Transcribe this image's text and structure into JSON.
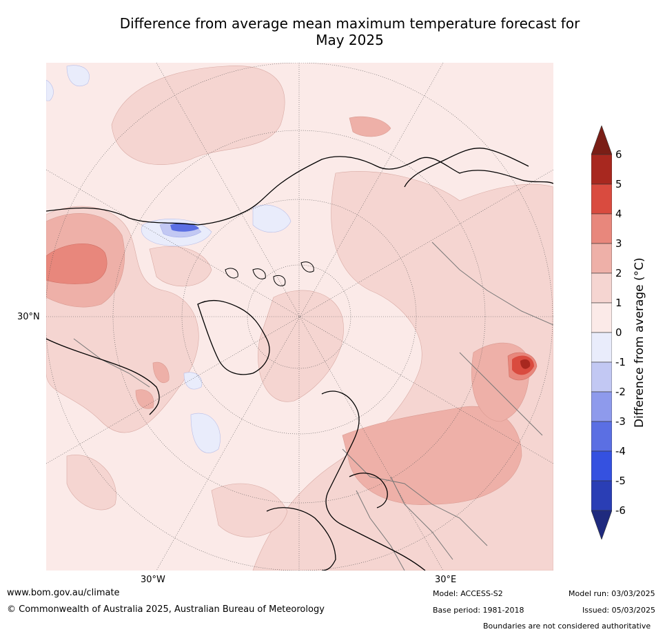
{
  "title_line1": "Difference from average mean maximum temperature forecast for",
  "title_line2": "May 2025",
  "axis_labels": {
    "lat_30N": "30°N",
    "lon_30W": "30°W",
    "lon_30E": "30°E"
  },
  "colorbar": {
    "label": "Difference from average (°C)",
    "ticks": [
      "6",
      "5",
      "4",
      "3",
      "2",
      "1",
      "0",
      "-1",
      "-2",
      "-3",
      "-4",
      "-5",
      "-6"
    ],
    "colors": {
      "above_6": "#7a1e16",
      "5_6": "#a8281f",
      "4_5": "#d94b3f",
      "3_4": "#e8877c",
      "2_3": "#eeb0a8",
      "1_2": "#f5d5d1",
      "0_1": "#fbeae8",
      "-1_0": "#e9ecfb",
      "-2_-1": "#c2c8f3",
      "-3_-2": "#8e9aec",
      "-4_-3": "#5b6fe3",
      "-5_-4": "#3551e0",
      "-6_-5": "#2a3eb5",
      "below_-6": "#1f2a7e"
    }
  },
  "footer": {
    "website": "www.bom.gov.au/climate",
    "copyright": "© Commonwealth of Australia 2025, Australian Bureau of Meteorology",
    "model": "Model: ACCESS-S2",
    "base_period": "Base period: 1981-2018",
    "model_run": "Model run: 03/03/2025",
    "issued": "Issued: 05/03/2025",
    "boundaries_note": "Boundaries are not considered authoritative"
  }
}
